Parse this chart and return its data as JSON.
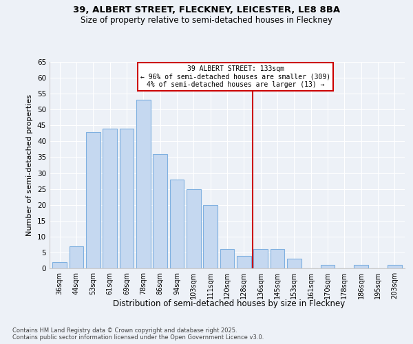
{
  "title1": "39, ALBERT STREET, FLECKNEY, LEICESTER, LE8 8BA",
  "title2": "Size of property relative to semi-detached houses in Fleckney",
  "xlabel": "Distribution of semi-detached houses by size in Fleckney",
  "ylabel": "Number of semi-detached properties",
  "categories": [
    "36sqm",
    "44sqm",
    "53sqm",
    "61sqm",
    "69sqm",
    "78sqm",
    "86sqm",
    "94sqm",
    "103sqm",
    "111sqm",
    "120sqm",
    "128sqm",
    "136sqm",
    "145sqm",
    "153sqm",
    "161sqm",
    "170sqm",
    "178sqm",
    "186sqm",
    "195sqm",
    "203sqm"
  ],
  "values": [
    2,
    7,
    43,
    44,
    44,
    53,
    36,
    28,
    25,
    20,
    6,
    4,
    6,
    6,
    3,
    0,
    1,
    0,
    1,
    0,
    1
  ],
  "bar_color": "#c5d8f0",
  "bar_edge_color": "#7fb0e0",
  "vline_x_idx": 12,
  "vline_color": "#cc0000",
  "annotation_title": "39 ALBERT STREET: 133sqm",
  "annotation_line1": "← 96% of semi-detached houses are smaller (309)",
  "annotation_line2": "4% of semi-detached houses are larger (13) →",
  "annotation_box_color": "#cc0000",
  "ylim": [
    0,
    65
  ],
  "yticks": [
    0,
    5,
    10,
    15,
    20,
    25,
    30,
    35,
    40,
    45,
    50,
    55,
    60,
    65
  ],
  "bg_color": "#edf1f7",
  "grid_color": "#ffffff",
  "footer1": "Contains HM Land Registry data © Crown copyright and database right 2025.",
  "footer2": "Contains public sector information licensed under the Open Government Licence v3.0."
}
